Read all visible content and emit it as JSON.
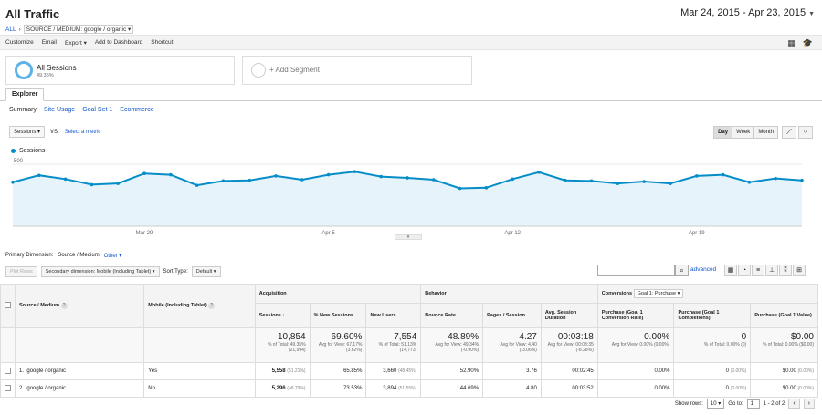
{
  "header": {
    "title": "All Traffic",
    "crumb_all": "ALL",
    "crumb_sep": "›",
    "crumb_dim": "SOURCE / MEDIUM: google / organic",
    "date_range": "Mar 24, 2015 - Apr 23, 2015"
  },
  "toolbar": {
    "items": [
      "Customize",
      "Email",
      "Export ▾",
      "Add to Dashboard",
      "Shortcut"
    ]
  },
  "segments": {
    "active_name": "All Sessions",
    "active_pct": "49.35%",
    "add_label": "+ Add Segment"
  },
  "tabs": {
    "explorer": "Explorer",
    "subtabs": [
      "Summary",
      "Site Usage",
      "Goal Set 1",
      "Ecommerce"
    ]
  },
  "metric": {
    "selected": "Sessions",
    "vs": "VS.",
    "select_link": "Select a metric",
    "periods": [
      "Day",
      "Week",
      "Month"
    ],
    "active_period": "Day"
  },
  "chart_data": {
    "type": "area",
    "series": [
      {
        "name": "Sessions",
        "values": [
          355,
          410,
          380,
          335,
          345,
          425,
          415,
          330,
          365,
          370,
          405,
          375,
          415,
          440,
          400,
          390,
          375,
          305,
          310,
          380,
          435,
          370,
          365,
          345,
          360,
          345,
          405,
          415,
          355,
          385,
          370
        ]
      }
    ],
    "x_labels": [
      "Mar 29",
      "Apr 5",
      "Apr 12",
      "Apr 19"
    ],
    "y_ticks": [
      500,
      250
    ],
    "ylim": [
      0,
      500
    ],
    "color": "#058dc7",
    "fill": "#e6f3fa"
  },
  "dimension": {
    "label": "Primary Dimension:",
    "value": "Source / Medium",
    "other": "Other ▾"
  },
  "tools": {
    "plot_rows": "Plot Rows",
    "secondary": "Secondary dimension: Mobile (Including Tablet) ▾",
    "sort_label": "Sort Type:",
    "sort_value": "Default ▾",
    "advanced": "advanced"
  },
  "table": {
    "col_source": "Source / Medium",
    "col_mobile": "Mobile (Including Tablet)",
    "group_acq": "Acquisition",
    "group_beh": "Behavior",
    "group_conv": "Conversions",
    "goal_select": "Goal 1: Purchase ▾",
    "headers": [
      "Sessions",
      "% New Sessions",
      "New Users",
      "Bounce Rate",
      "Pages / Session",
      "Avg. Session Duration",
      "Purchase (Goal 1 Conversion Rate)",
      "Purchase (Goal 1 Completions)",
      "Purchase (Goal 1 Value)"
    ],
    "totals": [
      {
        "big": "10,854",
        "sub": "% of Total: 49.35% (21,994)"
      },
      {
        "big": "69.60%",
        "sub": "Avg for View: 67.17% (3.62%)"
      },
      {
        "big": "7,554",
        "sub": "% of Total: 51.13% (14,773)"
      },
      {
        "big": "48.89%",
        "sub": "Avg for View: 49.34% (-0.90%)"
      },
      {
        "big": "4.27",
        "sub": "Avg for View: 4.40 (-3.06%)"
      },
      {
        "big": "00:03:18",
        "sub": "Avg for View: 00:03:35 (-8.28%)"
      },
      {
        "big": "0.00%",
        "sub": "Avg for View: 0.00% (0.00%)"
      },
      {
        "big": "0",
        "sub": "% of Total: 0.00% (0)"
      },
      {
        "big": "$0.00",
        "sub": "% of Total: 0.00% ($0.00)"
      }
    ],
    "rows": [
      {
        "idx": "1.",
        "source": "google / organic",
        "mobile": "Yes",
        "sessions": "5,558",
        "sessions_pct": "(51.21%)",
        "new_sessions": "65.85%",
        "new_users": "3,660",
        "new_users_pct": "(48.45%)",
        "bounce": "52.90%",
        "pages": "3.76",
        "duration": "00:02:45",
        "conv_rate": "0.00%",
        "completions": "0",
        "completions_pct": "(0.00%)",
        "value": "$0.00",
        "value_pct": "(0.00%)"
      },
      {
        "idx": "2.",
        "source": "google / organic",
        "mobile": "No",
        "sessions": "5,296",
        "sessions_pct": "(48.79%)",
        "new_sessions": "73.53%",
        "new_users": "3,894",
        "new_users_pct": "(51.55%)",
        "bounce": "44.69%",
        "pages": "4.80",
        "duration": "00:03:52",
        "conv_rate": "0.00%",
        "completions": "0",
        "completions_pct": "(0.00%)",
        "value": "$0.00",
        "value_pct": "(0.00%)"
      }
    ]
  },
  "pager": {
    "show_rows": "Show rows:",
    "rows_value": "10",
    "goto": "Go to:",
    "goto_value": "1",
    "range": "1 - 2 of 2",
    "prev": "‹",
    "next": "›"
  }
}
